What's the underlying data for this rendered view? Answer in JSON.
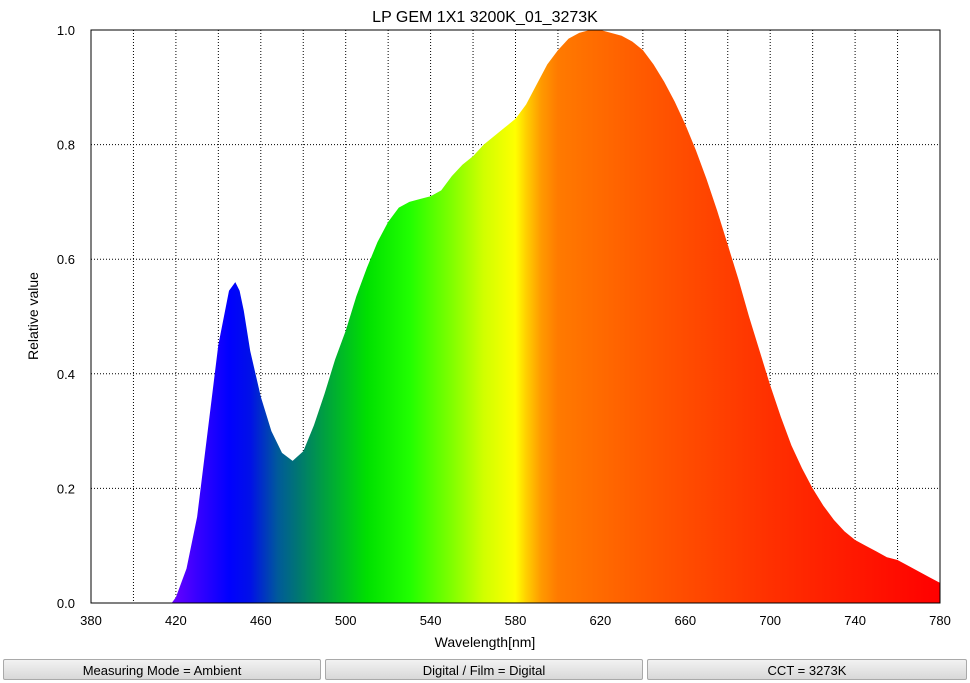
{
  "chart_data": {
    "type": "area",
    "title": "LP GEM 1X1 3200K_01_3273K",
    "xlabel": "Wavelength[nm]",
    "ylabel": "Relative value",
    "xlim": [
      380,
      780
    ],
    "ylim": [
      0,
      1.0
    ],
    "x_ticks": [
      380,
      420,
      460,
      500,
      540,
      580,
      620,
      660,
      700,
      740,
      780
    ],
    "y_ticks": [
      0.0,
      0.2,
      0.4,
      0.6,
      0.8,
      1.0
    ],
    "y_tick_labels": [
      "0.0",
      "0.2",
      "0.4",
      "0.6",
      "0.8",
      "1.0"
    ],
    "grid": true,
    "fill": "spectral-gradient",
    "series": [
      {
        "x": [
          418,
          420,
          425,
          430,
          435,
          440,
          445,
          448,
          450,
          452,
          455,
          460,
          465,
          470,
          475,
          480,
          485,
          490,
          495,
          500,
          505,
          510,
          515,
          520,
          525,
          530,
          535,
          540,
          545,
          550,
          555,
          560,
          565,
          570,
          575,
          580,
          585,
          590,
          595,
          600,
          605,
          610,
          615,
          620,
          625,
          630,
          635,
          640,
          645,
          650,
          655,
          660,
          665,
          670,
          675,
          680,
          685,
          690,
          695,
          700,
          705,
          710,
          715,
          720,
          725,
          730,
          735,
          740,
          745,
          750,
          755,
          760,
          765,
          770,
          775,
          780
        ],
        "y": [
          0.0,
          0.01,
          0.06,
          0.15,
          0.3,
          0.45,
          0.545,
          0.56,
          0.545,
          0.51,
          0.44,
          0.36,
          0.3,
          0.262,
          0.248,
          0.265,
          0.31,
          0.365,
          0.425,
          0.475,
          0.535,
          0.585,
          0.63,
          0.665,
          0.69,
          0.7,
          0.705,
          0.71,
          0.72,
          0.745,
          0.765,
          0.78,
          0.8,
          0.815,
          0.83,
          0.845,
          0.87,
          0.905,
          0.94,
          0.965,
          0.985,
          0.995,
          1.0,
          1.0,
          0.995,
          0.99,
          0.98,
          0.965,
          0.94,
          0.91,
          0.875,
          0.835,
          0.79,
          0.74,
          0.685,
          0.625,
          0.565,
          0.5,
          0.44,
          0.38,
          0.325,
          0.275,
          0.235,
          0.2,
          0.17,
          0.145,
          0.125,
          0.11,
          0.1,
          0.09,
          0.08,
          0.075,
          0.065,
          0.055,
          0.045,
          0.035
        ]
      }
    ]
  },
  "status_bar": {
    "measuring_mode": "Measuring Mode = Ambient",
    "digital_film": "Digital / Film = Digital",
    "cct": "CCT = 3273K"
  }
}
